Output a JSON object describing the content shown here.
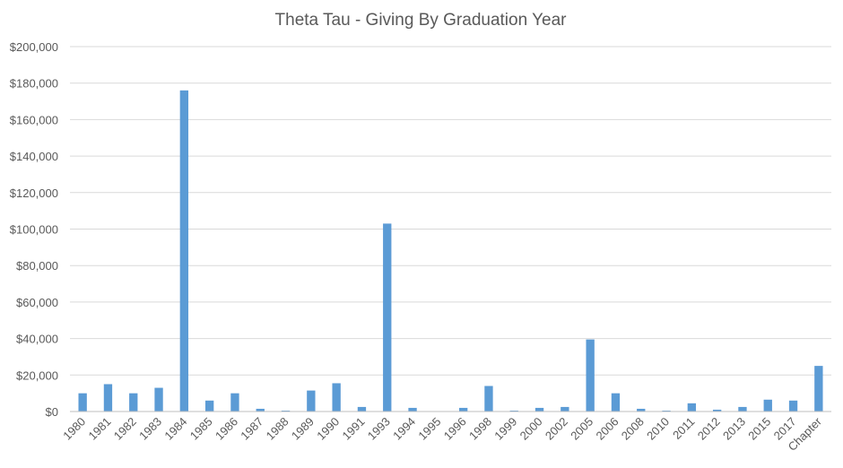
{
  "chart_data": {
    "type": "bar",
    "title": "Theta Tau - Giving By Graduation Year",
    "xlabel": "",
    "ylabel": "",
    "ylim": [
      0,
      200000
    ],
    "yticks": [
      "$0",
      "$20,000",
      "$40,000",
      "$60,000",
      "$80,000",
      "$100,000",
      "$120,000",
      "$140,000",
      "$160,000",
      "$180,000",
      "$200,000"
    ],
    "categories": [
      "1980",
      "1981",
      "1982",
      "1983",
      "1984",
      "1985",
      "1986",
      "1987",
      "1988",
      "1989",
      "1990",
      "1991",
      "1993",
      "1994",
      "1995",
      "1996",
      "1998",
      "1999",
      "2000",
      "2002",
      "2005",
      "2006",
      "2008",
      "2010",
      "2011",
      "2012",
      "2013",
      "2015",
      "2017",
      "Chapter"
    ],
    "values": [
      10000,
      15000,
      10000,
      13000,
      176000,
      6000,
      10000,
      1500,
      500,
      11500,
      15500,
      2500,
      103000,
      2000,
      0,
      2000,
      14000,
      500,
      2000,
      2500,
      39500,
      10000,
      1500,
      500,
      4500,
      1000,
      2500,
      6500,
      6000,
      25000
    ],
    "grid": true,
    "legend": "none",
    "bar_color": "#5b9bd5"
  }
}
